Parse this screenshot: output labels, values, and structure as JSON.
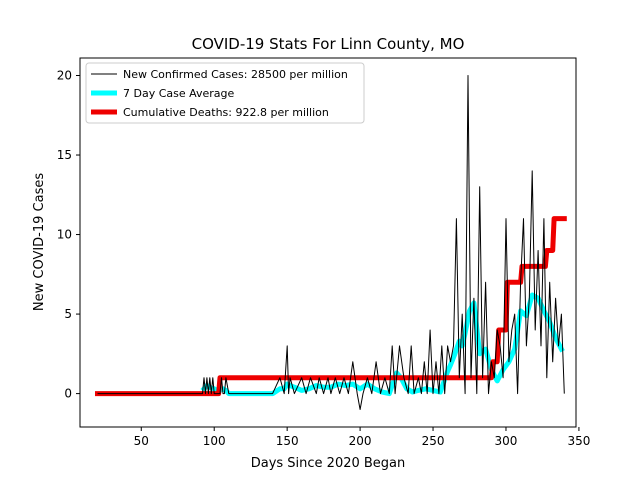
{
  "chart_data": {
    "type": "line",
    "title": "COVID-19 Stats For Linn County, MO",
    "xlabel": "Days Since 2020 Began",
    "ylabel": "New COVID-19 Cases",
    "xlim": [
      8,
      348
    ],
    "ylim": [
      -2.1,
      21.1
    ],
    "xticks": [
      50,
      100,
      150,
      200,
      250,
      300,
      350
    ],
    "yticks": [
      0,
      5,
      10,
      15,
      20
    ],
    "xtick_labels": [
      "50",
      "100",
      "150",
      "200",
      "250",
      "300",
      "350"
    ],
    "ytick_labels": [
      "0",
      "5",
      "10",
      "15",
      "20"
    ],
    "grid": false,
    "legend_position": "top-left",
    "series": [
      {
        "name": "New Confirmed Cases: 28500 per million",
        "color": "#000000",
        "x": [
          20,
          92,
          93,
          94,
          95,
          96,
          97,
          98,
          99,
          100,
          104,
          105,
          106,
          107,
          108,
          110,
          140,
          145,
          148,
          150,
          151,
          152,
          155,
          160,
          163,
          166,
          170,
          172,
          175,
          178,
          180,
          183,
          186,
          189,
          192,
          195,
          198,
          200,
          202,
          205,
          208,
          211,
          214,
          217,
          220,
          222,
          224,
          227,
          230,
          233,
          235,
          237,
          240,
          242,
          244,
          246,
          248,
          250,
          252,
          254,
          256,
          258,
          260,
          262,
          264,
          266,
          268,
          270,
          272,
          274,
          276,
          278,
          280,
          282,
          284,
          286,
          288,
          290,
          292,
          294,
          296,
          298,
          300,
          302,
          304,
          306,
          308,
          310,
          312,
          314,
          316,
          318,
          320,
          322,
          324,
          326,
          328,
          330,
          332,
          334,
          336,
          338,
          340
        ],
        "y": [
          0,
          0,
          1,
          0,
          1,
          0,
          1,
          0,
          1,
          0,
          0,
          1,
          0,
          0,
          1,
          0,
          0,
          1,
          0,
          3,
          0,
          1,
          0,
          1,
          0,
          1,
          0,
          1,
          0,
          1,
          0,
          1,
          0,
          1,
          0,
          2,
          0,
          -1,
          0,
          1,
          0,
          2,
          0,
          1,
          0,
          3,
          0,
          3,
          1,
          0,
          3,
          0,
          1,
          0,
          2,
          0,
          4,
          0,
          2,
          0,
          3,
          0,
          3,
          2,
          3,
          11,
          1,
          5,
          0,
          20,
          1,
          6,
          0,
          13,
          1,
          7,
          0,
          2,
          1,
          4,
          3,
          1,
          11,
          2,
          4,
          5,
          0,
          7,
          11,
          3,
          6,
          14,
          4,
          9,
          3,
          11,
          1,
          7,
          2,
          6,
          3,
          5,
          0
        ]
      },
      {
        "name": "7 Day Case Average",
        "color": "#00ffff",
        "x": [
          93,
          95,
          97,
          99,
          100,
          102,
          104,
          106,
          108,
          110,
          140,
          145,
          148,
          150,
          152,
          155,
          160,
          165,
          170,
          175,
          180,
          185,
          190,
          195,
          200,
          205,
          210,
          215,
          220,
          225,
          228,
          232,
          236,
          240,
          245,
          250,
          255,
          260,
          262,
          265,
          268,
          270,
          272,
          275,
          278,
          282,
          286,
          290,
          294,
          298,
          302,
          306,
          310,
          314,
          318,
          322,
          326,
          330,
          334,
          338
        ],
        "y": [
          0.3,
          0.5,
          0.4,
          0.3,
          0.3,
          0.2,
          0.2,
          0.3,
          0.2,
          0.0,
          0.0,
          0.3,
          0.3,
          0.6,
          0.5,
          0.4,
          0.2,
          0.3,
          0.5,
          0.4,
          0.4,
          0.6,
          0.5,
          0.6,
          0.3,
          0.6,
          0.3,
          0.1,
          0.0,
          1.3,
          1.0,
          0.3,
          0.1,
          0.2,
          0.3,
          0.2,
          0.1,
          1.4,
          1.8,
          2.5,
          3.3,
          3.0,
          3.8,
          5.2,
          5.7,
          2.5,
          2.8,
          1.5,
          0.8,
          1.5,
          2.0,
          2.8,
          5.2,
          4.9,
          6.2,
          6.0,
          5.2,
          4.5,
          3.5,
          2.8
        ]
      },
      {
        "name": "Cumulative Deaths: 922.8 per million",
        "color": "#ee0000",
        "x": [
          20,
          103,
          104,
          290,
          291,
          294,
          295,
          300,
          301,
          310,
          311,
          322,
          323,
          327,
          328,
          332,
          333,
          340
        ],
        "y": [
          0,
          0,
          1,
          1,
          2,
          2,
          4,
          4,
          7,
          7,
          8,
          8,
          8,
          8,
          9,
          9,
          11,
          11
        ]
      }
    ]
  }
}
